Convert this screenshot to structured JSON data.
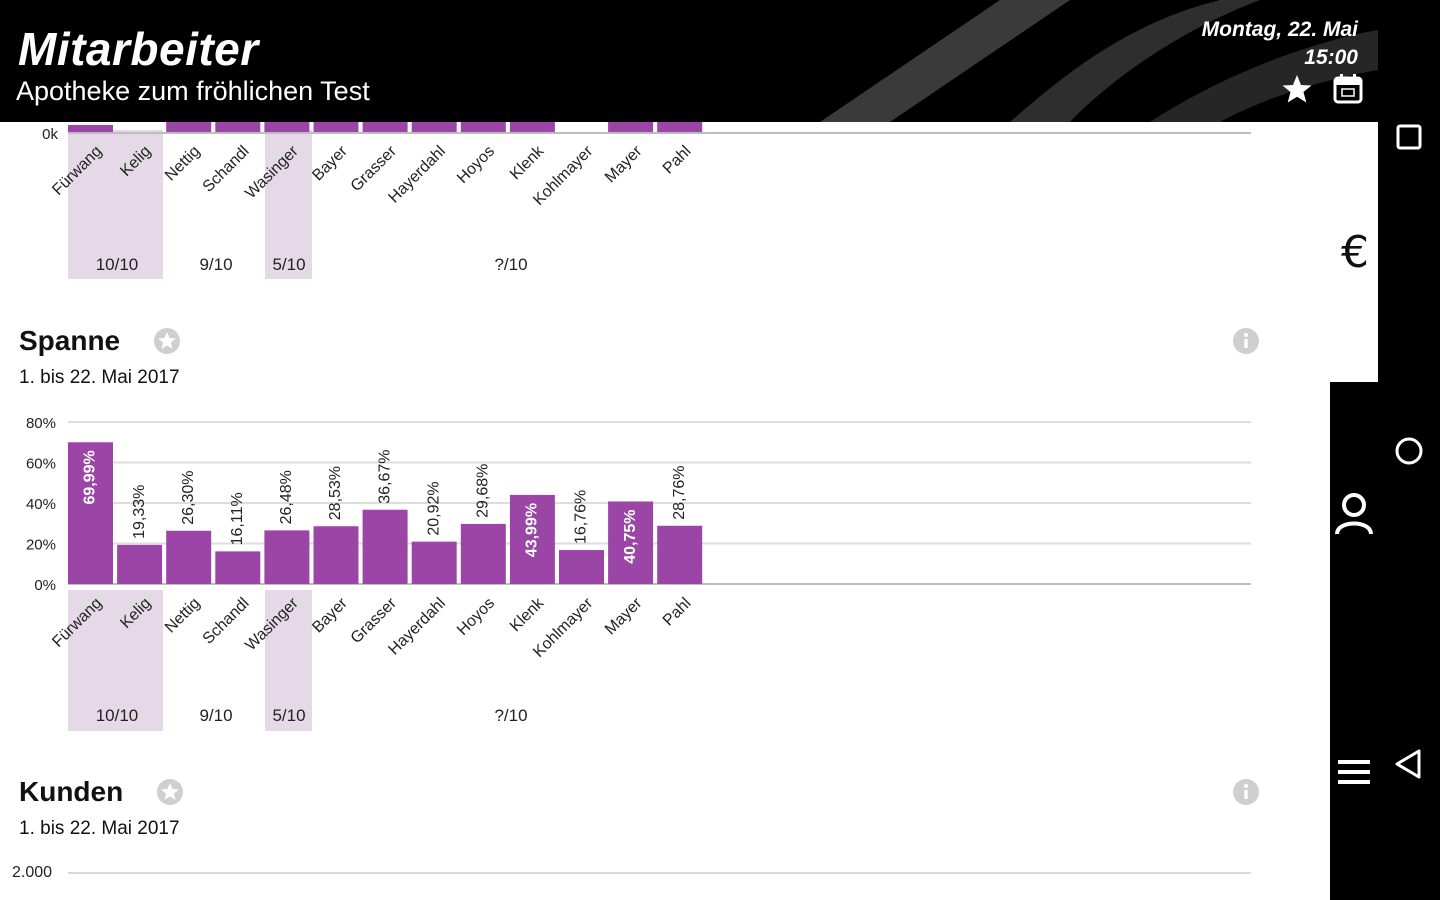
{
  "header": {
    "title": "Mitarbeiter",
    "subtitle": "Apotheke zum fröhlichen Test",
    "date": "Montag, 22. Mai",
    "time": "15:00",
    "accent_color": "#000000"
  },
  "top_chart_partial": {
    "axis_label": "0k",
    "employees": [
      "Fürwang",
      "Kelig",
      "Nettig",
      "Schandl",
      "Wasinger",
      "Bayer",
      "Grasser",
      "Hayerdahl",
      "Hoyos",
      "Klenk",
      "Kohlmayer",
      "Mayer",
      "Pahl"
    ],
    "groups": [
      "10/10",
      "9/10",
      "5/10",
      "?/10"
    ]
  },
  "sections": [
    {
      "title": "Spanne",
      "range": "1. bis 22. Mai 2017"
    },
    {
      "title": "Kunden",
      "range": "1. bis 22. Mai 2017",
      "axis_top_label": "2.000"
    }
  ],
  "chart_data": {
    "type": "bar",
    "categories": [
      "Fürwang",
      "Kelig",
      "Nettig",
      "Schandl",
      "Wasinger",
      "Bayer",
      "Grasser",
      "Hayerdahl",
      "Hoyos",
      "Klenk",
      "Kohlmayer",
      "Mayer",
      "Pahl"
    ],
    "values": [
      69.99,
      19.33,
      26.3,
      16.11,
      26.48,
      28.53,
      36.67,
      20.92,
      29.68,
      43.99,
      16.76,
      40.75,
      28.76
    ],
    "value_labels": [
      "69,99%",
      "19,33%",
      "26,30%",
      "16,11%",
      "26,48%",
      "28,53%",
      "36,67%",
      "20,92%",
      "29,68%",
      "43,99%",
      "16,76%",
      "40,75%",
      "28,76%"
    ],
    "ytick_labels": [
      "80%",
      "60%",
      "40%",
      "20%",
      "0%"
    ],
    "ylim": [
      0,
      80
    ],
    "title": "Spanne",
    "group_labels": [
      "10/10",
      "9/10",
      "5/10",
      "?/10"
    ],
    "bar_color": "#9b45a6",
    "group_shade_color": "#e5d9e7",
    "grid": true
  },
  "side_panel": {
    "euro_label": "€"
  },
  "icons": {
    "star": "star-icon",
    "calendar": "calendar-icon",
    "favorite": "favorite-star-icon",
    "info": "info-icon",
    "user": "user-icon",
    "menu": "menu-icon",
    "nav_recent": "recent-apps-icon",
    "nav_home": "home-icon",
    "nav_back": "back-icon"
  }
}
